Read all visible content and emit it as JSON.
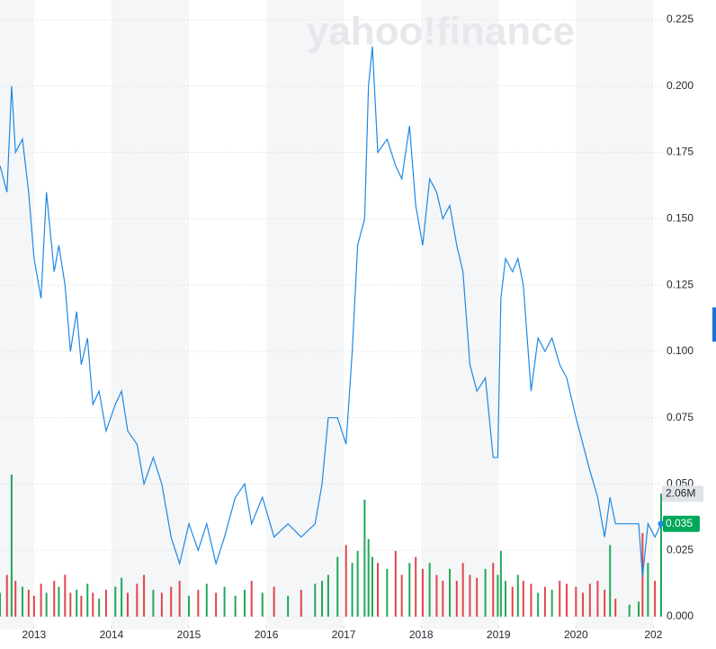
{
  "chart_data": {
    "type": "line",
    "watermark": "yahoo!finance",
    "x": [
      2012.56,
      2012.65,
      2012.71,
      2012.76,
      2012.85,
      2012.93,
      2013.0,
      2013.09,
      2013.16,
      2013.26,
      2013.32,
      2013.4,
      2013.47,
      2013.55,
      2013.61,
      2013.69,
      2013.76,
      2013.84,
      2013.93,
      2014.05,
      2014.13,
      2014.21,
      2014.33,
      2014.42,
      2014.54,
      2014.65,
      2014.77,
      2014.88,
      2015.0,
      2015.12,
      2015.23,
      2015.35,
      2015.46,
      2015.6,
      2015.72,
      2015.81,
      2015.95,
      2016.1,
      2016.28,
      2016.45,
      2016.63,
      2016.72,
      2016.8,
      2016.92,
      2017.03,
      2017.11,
      2017.18,
      2017.27,
      2017.32,
      2017.37,
      2017.44,
      2017.56,
      2017.67,
      2017.75,
      2017.85,
      2017.93,
      2018.02,
      2018.11,
      2018.2,
      2018.28,
      2018.37,
      2018.46,
      2018.54,
      2018.63,
      2018.72,
      2018.83,
      2018.93,
      2018.99,
      2019.03,
      2019.09,
      2019.18,
      2019.25,
      2019.32,
      2019.42,
      2019.51,
      2019.6,
      2019.69,
      2019.79,
      2019.88,
      2020.0,
      2020.09,
      2020.18,
      2020.28,
      2020.37,
      2020.44,
      2020.51,
      2020.69,
      2020.81,
      2020.86,
      2020.93,
      2021.02,
      2021.1
    ],
    "series": [
      {
        "color": "#1e88e5",
        "values": [
          0.17,
          0.16,
          0.2,
          0.175,
          0.18,
          0.16,
          0.135,
          0.12,
          0.16,
          0.13,
          0.14,
          0.125,
          0.1,
          0.115,
          0.095,
          0.105,
          0.08,
          0.085,
          0.07,
          0.08,
          0.085,
          0.07,
          0.065,
          0.05,
          0.06,
          0.05,
          0.03,
          0.02,
          0.035,
          0.025,
          0.035,
          0.02,
          0.03,
          0.045,
          0.05,
          0.035,
          0.045,
          0.03,
          0.035,
          0.03,
          0.035,
          0.05,
          0.075,
          0.075,
          0.065,
          0.1,
          0.14,
          0.15,
          0.2,
          0.215,
          0.175,
          0.18,
          0.17,
          0.165,
          0.185,
          0.155,
          0.14,
          0.165,
          0.16,
          0.15,
          0.155,
          0.14,
          0.13,
          0.095,
          0.085,
          0.09,
          0.06,
          0.06,
          0.12,
          0.135,
          0.13,
          0.135,
          0.125,
          0.085,
          0.105,
          0.1,
          0.105,
          0.095,
          0.09,
          0.075,
          0.065,
          0.055,
          0.045,
          0.03,
          0.045,
          0.035,
          0.035,
          0.035,
          0.015,
          0.035,
          0.03,
          0.035
        ]
      },
      {
        "type": "bar",
        "axis": "y2",
        "up_color": "#20a85a",
        "down_color": "#e0464a",
        "values": [
          400000,
          700000,
          2380000,
          600000,
          500000,
          450000,
          350000,
          550000,
          400000,
          600000,
          500000,
          700000,
          400000,
          450000,
          350000,
          550000,
          400000,
          300000,
          450000,
          500000,
          650000,
          400000,
          550000,
          700000,
          450000,
          400000,
          500000,
          600000,
          350000,
          450000,
          550000,
          400000,
          500000,
          350000,
          450000,
          600000,
          400000,
          500000,
          350000,
          450000,
          550000,
          600000,
          700000,
          1000000,
          1200000,
          900000,
          1100000,
          1960000,
          1300000,
          1000000,
          900000,
          800000,
          1100000,
          700000,
          900000,
          1000000,
          800000,
          900000,
          700000,
          600000,
          800000,
          600000,
          900000,
          700000,
          650000,
          800000,
          900000,
          700000,
          1100000,
          600000,
          500000,
          700000,
          600000,
          550000,
          400000,
          500000,
          450000,
          600000,
          550000,
          500000,
          400000,
          550000,
          600000,
          450000,
          1200000,
          300000,
          200000,
          250000,
          1400000,
          900000,
          600000,
          2060000
        ],
        "value_labels": [
          null,
          null,
          null,
          null,
          null,
          null,
          null,
          null,
          null,
          null,
          null,
          null,
          null,
          null,
          null,
          null,
          null,
          null,
          null,
          null,
          null,
          null,
          null,
          null,
          null,
          null,
          null,
          null,
          null,
          null,
          null,
          null,
          null,
          null,
          null,
          null,
          null,
          null,
          null,
          null,
          null,
          null,
          null,
          null,
          null,
          null,
          null,
          null,
          null,
          null,
          null,
          null,
          null,
          null,
          null,
          null,
          null,
          null,
          null,
          null,
          null,
          null,
          null,
          null,
          null,
          null,
          null,
          null,
          null,
          null,
          null,
          null,
          null,
          null,
          null,
          null,
          null,
          null,
          null,
          null,
          null,
          null,
          null,
          null,
          null,
          null,
          null,
          null,
          null,
          null,
          null,
          "2.06M"
        ]
      }
    ],
    "xlim": [
      2012.56,
      2021.1
    ],
    "xticks": [
      2013,
      2014,
      2015,
      2016,
      2017,
      2018,
      2019,
      2020,
      {
        "value": 2021,
        "label": "202"
      }
    ],
    "ylim": [
      0,
      0.225
    ],
    "yticks": [
      {
        "value": 0,
        "label": "0.000"
      },
      0.025,
      {
        "value": 0.05,
        "label": "0.050"
      },
      0.075,
      {
        "value": 0.1,
        "label": "0.100"
      },
      0.125,
      {
        "value": 0.15,
        "label": "0.150"
      },
      0.175,
      {
        "value": 0.2,
        "label": "0.200"
      },
      0.225
    ],
    "y2lim": [
      0,
      10000000
    ],
    "grid": true
  }
}
